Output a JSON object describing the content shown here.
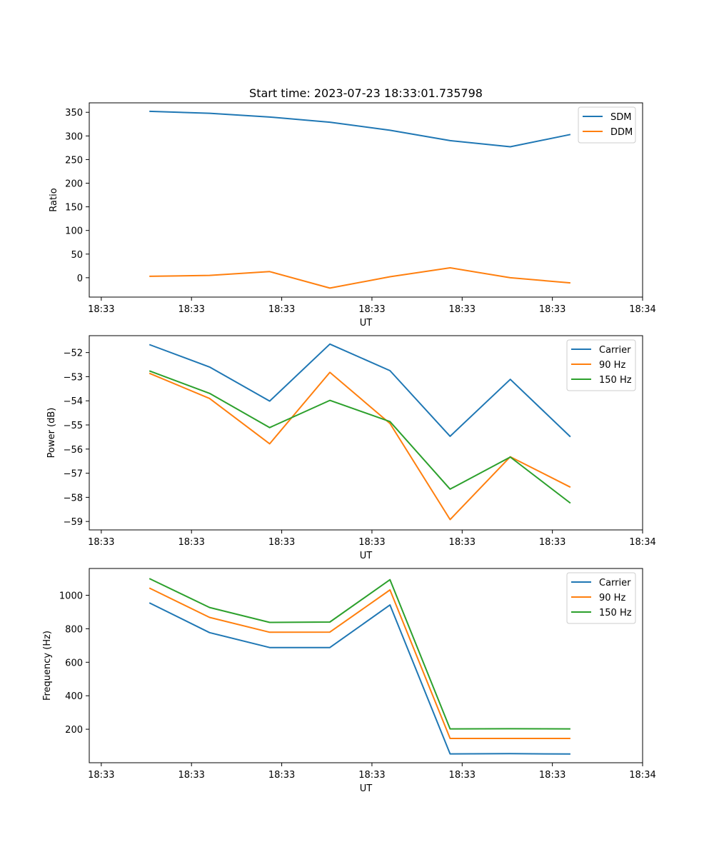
{
  "chart_data": [
    {
      "type": "line",
      "title": "Start time: 2023-07-23 18:33:01.735798",
      "xlabel": "UT",
      "ylabel": "Ratio",
      "xlim": [
        0,
        9.2
      ],
      "ylim": [
        -41,
        370
      ],
      "x": [
        1,
        2,
        3,
        4,
        5,
        6,
        7,
        8
      ],
      "xticks": [
        0.2,
        1.7,
        3.2,
        4.7,
        6.2,
        7.7,
        9.2
      ],
      "xtick_labels": [
        "18:33",
        "18:33",
        "18:33",
        "18:33",
        "18:33",
        "18:33",
        "18:34"
      ],
      "yticks": [
        0,
        50,
        100,
        150,
        200,
        250,
        300,
        350
      ],
      "ytick_labels": [
        "0",
        "50",
        "100",
        "150",
        "200",
        "250",
        "300",
        "350"
      ],
      "legend_position": "top-right",
      "series": [
        {
          "name": "SDM",
          "color": "#1f77b4",
          "values": [
            352,
            348,
            340,
            329,
            312,
            290,
            277,
            303
          ]
        },
        {
          "name": "DDM",
          "color": "#ff7f0e",
          "values": [
            3,
            5,
            13,
            -22,
            2,
            21,
            0,
            -11
          ]
        }
      ]
    },
    {
      "type": "line",
      "title": "",
      "xlabel": "UT",
      "ylabel": "Power (dB)",
      "xlim": [
        0,
        9.2
      ],
      "ylim": [
        -59.35,
        -51.3
      ],
      "x": [
        1,
        2,
        3,
        4,
        5,
        6,
        7,
        8
      ],
      "xticks": [
        0.2,
        1.7,
        3.2,
        4.7,
        6.2,
        7.7,
        9.2
      ],
      "xtick_labels": [
        "18:33",
        "18:33",
        "18:33",
        "18:33",
        "18:33",
        "18:33",
        "18:34"
      ],
      "yticks": [
        -59,
        -58,
        -57,
        -56,
        -55,
        -54,
        -53,
        -52
      ],
      "ytick_labels": [
        "−59",
        "−58",
        "−57",
        "−56",
        "−55",
        "−54",
        "−53",
        "−52"
      ],
      "legend_position": "top-right",
      "series": [
        {
          "name": "Carrier",
          "color": "#1f77b4",
          "values": [
            -51.67,
            -52.6,
            -54.01,
            -51.65,
            -52.75,
            -55.47,
            -53.11,
            -55.49
          ]
        },
        {
          "name": "90 Hz",
          "color": "#ff7f0e",
          "values": [
            -52.86,
            -53.9,
            -55.78,
            -52.82,
            -54.94,
            -58.92,
            -56.32,
            -57.58
          ]
        },
        {
          "name": "150 Hz",
          "color": "#2ca02c",
          "values": [
            -52.76,
            -53.69,
            -55.11,
            -53.98,
            -54.86,
            -57.66,
            -56.33,
            -58.24
          ]
        }
      ]
    },
    {
      "type": "line",
      "title": "",
      "xlabel": "UT",
      "ylabel": "Frequency (Hz)",
      "xlim": [
        0,
        9.2
      ],
      "ylim": [
        0,
        1160
      ],
      "x": [
        1,
        2,
        3,
        4,
        5,
        6,
        7,
        8
      ],
      "xticks": [
        0.2,
        1.7,
        3.2,
        4.7,
        6.2,
        7.7,
        9.2
      ],
      "xtick_labels": [
        "18:33",
        "18:33",
        "18:33",
        "18:33",
        "18:33",
        "18:33",
        "18:34"
      ],
      "yticks": [
        200,
        400,
        600,
        800,
        1000
      ],
      "ytick_labels": [
        "200",
        "400",
        "600",
        "800",
        "1000"
      ],
      "legend_position": "top-right",
      "series": [
        {
          "name": "Carrier",
          "color": "#1f77b4",
          "values": [
            955,
            777,
            688,
            688,
            942,
            53,
            54,
            52
          ]
        },
        {
          "name": "90 Hz",
          "color": "#ff7f0e",
          "values": [
            1043,
            868,
            779,
            780,
            1032,
            145,
            145,
            145
          ]
        },
        {
          "name": "150 Hz",
          "color": "#2ca02c",
          "values": [
            1100,
            927,
            838,
            840,
            1093,
            202,
            203,
            202
          ]
        }
      ]
    }
  ]
}
